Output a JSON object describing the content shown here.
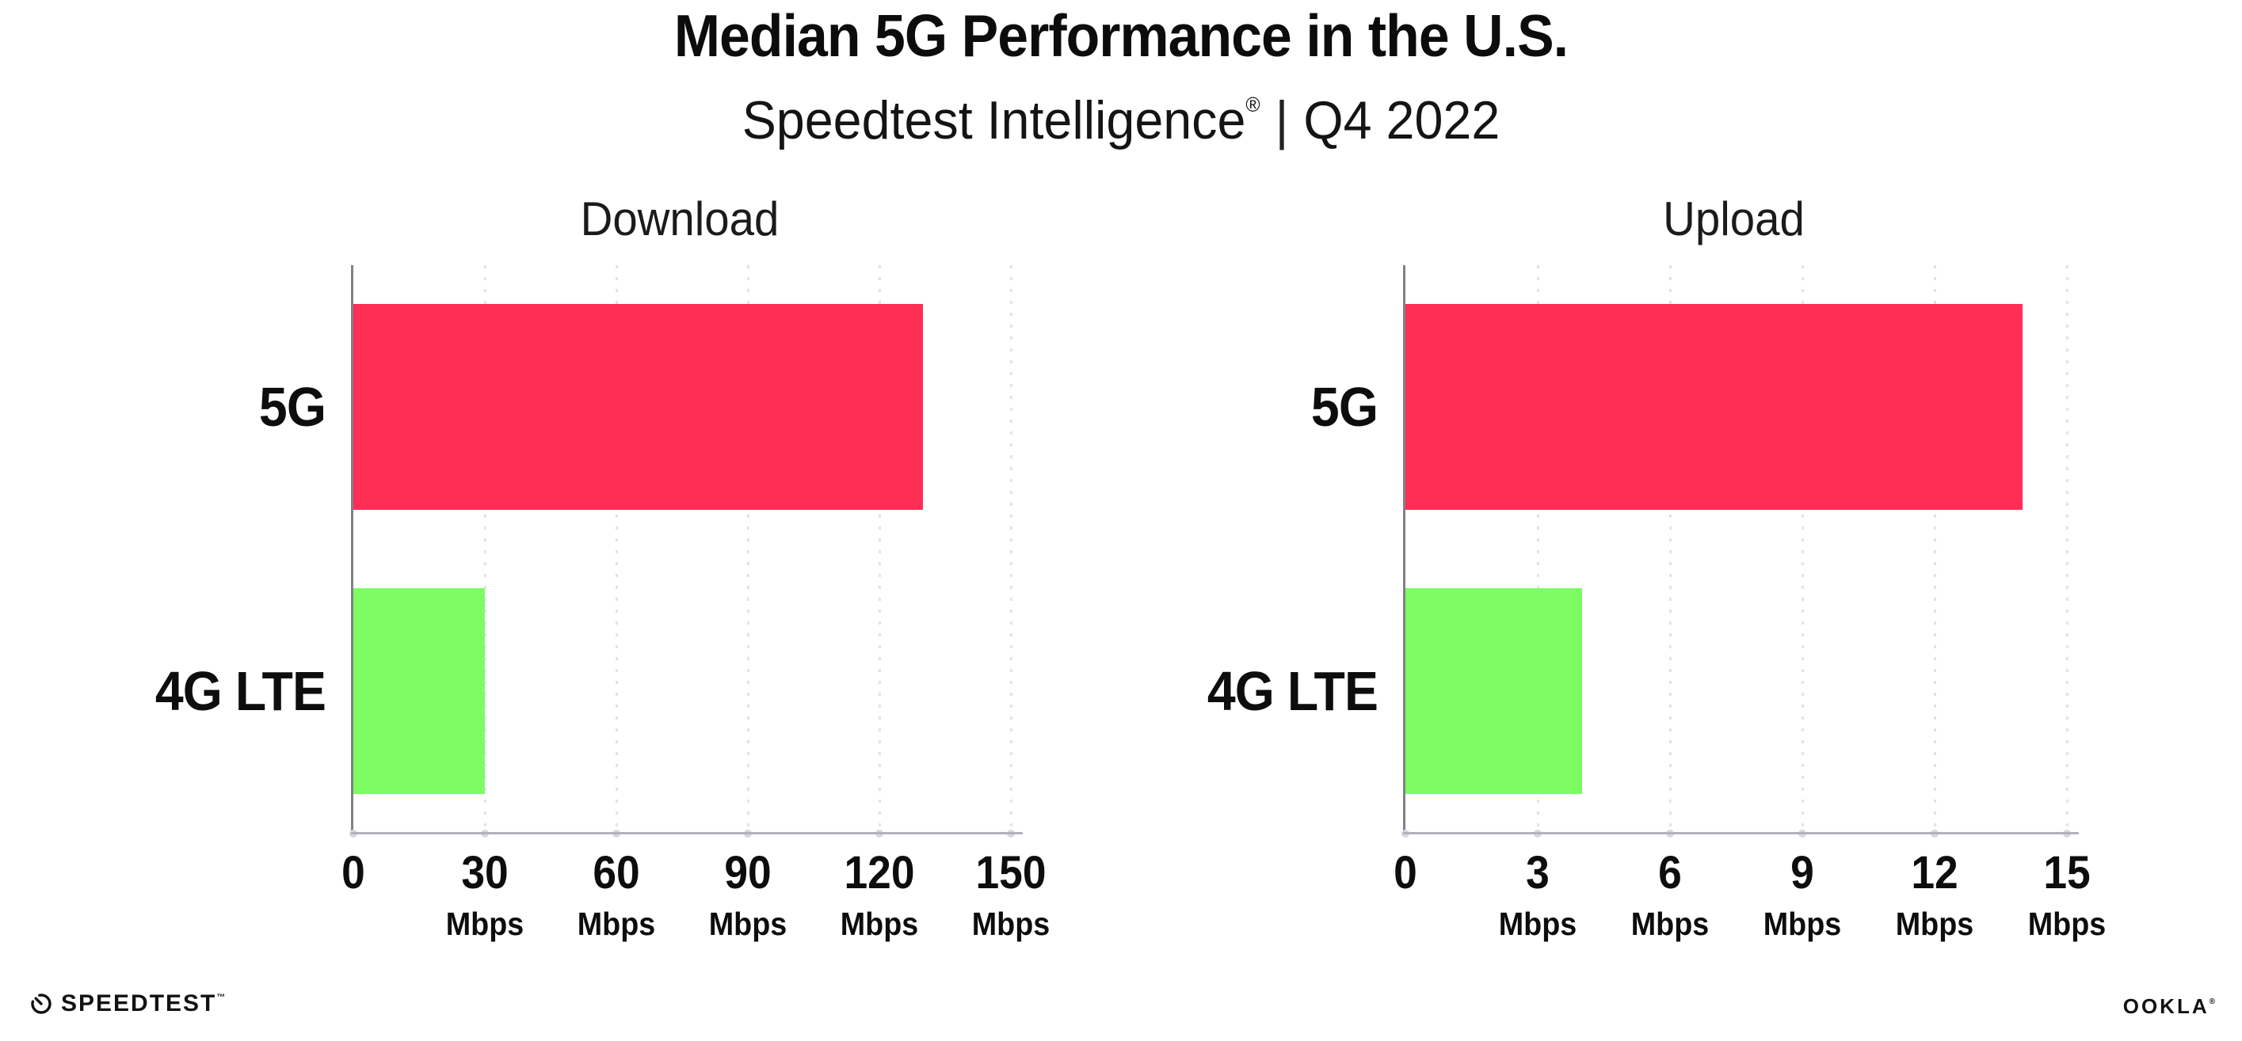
{
  "page": {
    "background": "#ffffff",
    "text_color": "#111111"
  },
  "header": {
    "title": "Median 5G Performance in the U.S.",
    "subtitle": {
      "brand": "Speedtest Intelligence",
      "registered_mark": "®",
      "divider": "|",
      "period": "Q4 2022"
    }
  },
  "chart_data": [
    {
      "type": "bar",
      "orientation": "horizontal",
      "title": "Download",
      "categories": [
        "5G",
        "4G LTE"
      ],
      "values": [
        130,
        30
      ],
      "unit": "Mbps",
      "xlim": [
        0,
        150
      ],
      "xticks": [
        0,
        30,
        60,
        90,
        120,
        150
      ],
      "bar_colors": [
        "#FF2E55",
        "#7DFC64"
      ],
      "grid": "vertical-dotted",
      "legend": false
    },
    {
      "type": "bar",
      "orientation": "horizontal",
      "title": "Upload",
      "categories": [
        "5G",
        "4G LTE"
      ],
      "values": [
        14,
        4
      ],
      "unit": "Mbps",
      "xlim": [
        0,
        15
      ],
      "xticks": [
        0,
        3,
        6,
        9,
        12,
        15
      ],
      "bar_colors": [
        "#FF2E55",
        "#7DFC64"
      ],
      "grid": "vertical-dotted",
      "legend": false
    }
  ],
  "colors": {
    "bar_5g": "#FF2E55",
    "bar_4g_lte": "#7DFC64",
    "axis_line": "#80808a",
    "baseline": "#b2b2b8",
    "gridline": "#e2e2ee"
  },
  "footer": {
    "speedtest_logo_text": "SPEEDTEST",
    "speedtest_trademark": "™",
    "ookla_logo_text": "OOKLA",
    "ookla_registered_mark": "®"
  }
}
